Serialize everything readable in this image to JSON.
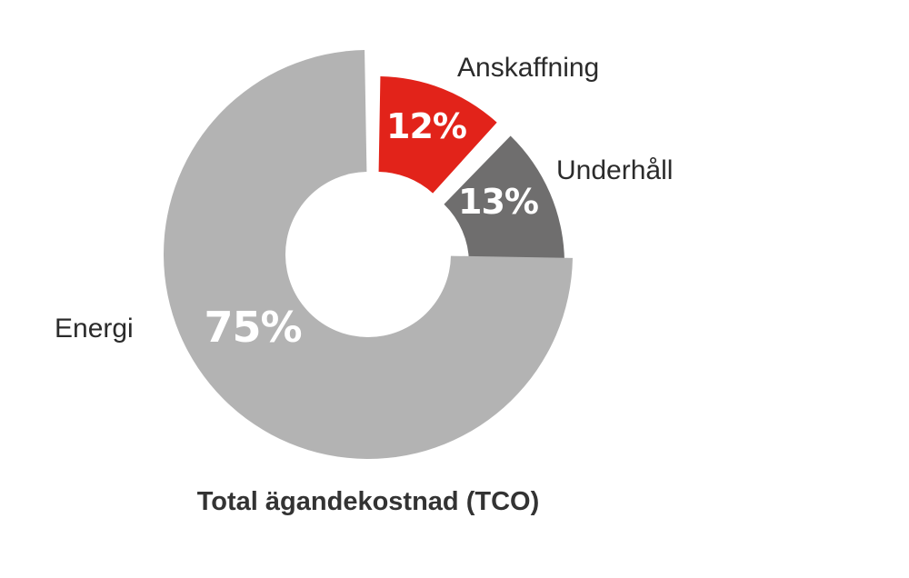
{
  "chart_data": {
    "type": "pie",
    "title": "Total ägandekostnad (TCO)",
    "legend": "none",
    "slices": [
      {
        "name": "Anskaffning",
        "value": 12,
        "label": "12%",
        "color": "#e2231a",
        "label_color": "#ffffff"
      },
      {
        "name": "Underhåll",
        "value": 13,
        "label": "13%",
        "color": "#6f6e6e",
        "label_color": "#ffffff"
      },
      {
        "name": "Energi",
        "value": 75,
        "label": "75%",
        "color": "#b3b3b3",
        "label_color": "#ffffff"
      }
    ]
  }
}
